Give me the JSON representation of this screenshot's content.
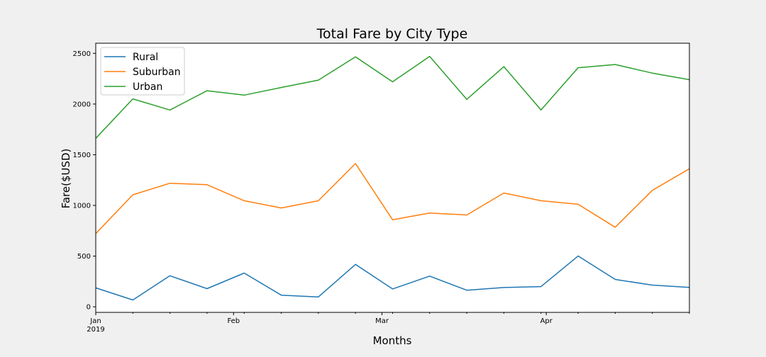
{
  "chart_data": {
    "type": "line",
    "title": "Total Fare by City Type",
    "xlabel": "Months",
    "ylabel": "Fare($USD)",
    "x": [
      "2019-01-06",
      "2019-01-13",
      "2019-01-20",
      "2019-01-27",
      "2019-02-03",
      "2019-02-10",
      "2019-02-17",
      "2019-02-24",
      "2019-03-03",
      "2019-03-10",
      "2019-03-17",
      "2019-03-24",
      "2019-03-31",
      "2019-04-07",
      "2019-04-14",
      "2019-04-21",
      "2019-04-28"
    ],
    "x_ticks": [
      {
        "date": "2019-01-06",
        "label": "Jan",
        "sublabel": "2019"
      },
      {
        "date": "2019-02-01",
        "label": "Feb",
        "sublabel": ""
      },
      {
        "date": "2019-03-01",
        "label": "Mar",
        "sublabel": ""
      },
      {
        "date": "2019-04-01",
        "label": "Apr",
        "sublabel": ""
      }
    ],
    "xlim": [
      "2019-01-06",
      "2019-04-28"
    ],
    "yticks": [
      0,
      500,
      1000,
      1500,
      2000,
      2500
    ],
    "ylim": [
      -55,
      2600
    ],
    "grid": false,
    "legend_position": "top-left",
    "series": [
      {
        "name": "Rural",
        "color": "#1f77b4",
        "values": [
          187,
          67,
          306,
          179,
          333,
          115,
          97,
          418,
          176,
          303,
          164,
          190,
          199,
          501,
          270,
          214,
          191
        ]
      },
      {
        "name": "Suburban",
        "color": "#ff7f0e",
        "values": [
          722,
          1105,
          1219,
          1204,
          1046,
          975,
          1046,
          1413,
          859,
          925,
          906,
          1122,
          1046,
          1011,
          785,
          1148,
          1362
        ]
      },
      {
        "name": "Urban",
        "color": "#2ca02c",
        "values": [
          1662,
          2051,
          1941,
          2131,
          2088,
          2163,
          2236,
          2466,
          2219,
          2470,
          2046,
          2369,
          1942,
          2358,
          2390,
          2305,
          2240
        ]
      }
    ]
  }
}
